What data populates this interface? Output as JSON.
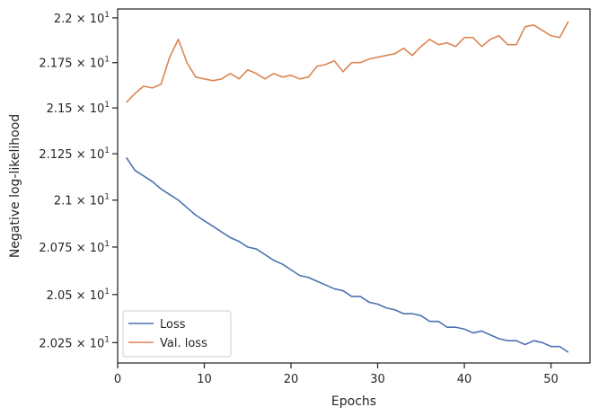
{
  "chart_data": {
    "type": "line",
    "xlabel": "Epochs",
    "ylabel": "Negative log-likelihood",
    "xlim": [
      0,
      54.5
    ],
    "ylim": [
      20.145,
      22.05
    ],
    "x_ticks": [
      0,
      10,
      20,
      30,
      40,
      50
    ],
    "y_ticks": [
      {
        "value": 20.25,
        "mantissa": "2.025"
      },
      {
        "value": 20.5,
        "mantissa": "2.05"
      },
      {
        "value": 20.75,
        "mantissa": "2.075"
      },
      {
        "value": 21.0,
        "mantissa": "2.1"
      },
      {
        "value": 21.25,
        "mantissa": "2.125"
      },
      {
        "value": 21.5,
        "mantissa": "2.15"
      },
      {
        "value": 21.75,
        "mantissa": "2.175"
      },
      {
        "value": 22.0,
        "mantissa": "2.2"
      }
    ],
    "y_tick_multiplier": "10",
    "y_tick_exponent": "1",
    "y_scale": "log",
    "grid": false,
    "legend_position": "lower-left",
    "x": [
      1,
      2,
      3,
      4,
      5,
      6,
      7,
      8,
      9,
      10,
      11,
      12,
      13,
      14,
      15,
      16,
      17,
      18,
      19,
      20,
      21,
      22,
      23,
      24,
      25,
      26,
      27,
      28,
      29,
      30,
      31,
      32,
      33,
      34,
      35,
      36,
      37,
      38,
      39,
      40,
      41,
      42,
      43,
      44,
      45,
      46,
      47,
      48,
      49,
      50,
      51,
      52
    ],
    "series": [
      {
        "name": "Loss",
        "color": "#4c72b0",
        "values": [
          21.23,
          21.16,
          21.13,
          21.1,
          21.06,
          21.03,
          21.0,
          20.96,
          20.92,
          20.89,
          20.86,
          20.83,
          20.8,
          20.78,
          20.75,
          20.74,
          20.71,
          20.68,
          20.66,
          20.63,
          20.6,
          20.59,
          20.57,
          20.55,
          20.53,
          20.52,
          20.49,
          20.49,
          20.46,
          20.45,
          20.43,
          20.42,
          20.4,
          20.4,
          20.39,
          20.36,
          20.36,
          20.33,
          20.33,
          20.32,
          20.3,
          20.31,
          20.29,
          20.27,
          20.26,
          20.26,
          20.24,
          20.26,
          20.25,
          20.23,
          20.23,
          20.2
        ]
      },
      {
        "name": "Val. loss",
        "color": "#dd8452",
        "values": [
          21.53,
          21.58,
          21.62,
          21.61,
          21.63,
          21.78,
          21.88,
          21.75,
          21.67,
          21.66,
          21.65,
          21.66,
          21.69,
          21.66,
          21.71,
          21.69,
          21.66,
          21.69,
          21.67,
          21.68,
          21.66,
          21.67,
          21.73,
          21.74,
          21.76,
          21.7,
          21.75,
          21.75,
          21.77,
          21.78,
          21.79,
          21.8,
          21.83,
          21.79,
          21.84,
          21.88,
          21.85,
          21.86,
          21.84,
          21.89,
          21.89,
          21.84,
          21.88,
          21.9,
          21.85,
          21.85,
          21.95,
          21.96,
          21.93,
          21.9,
          21.89,
          21.98
        ]
      }
    ]
  }
}
